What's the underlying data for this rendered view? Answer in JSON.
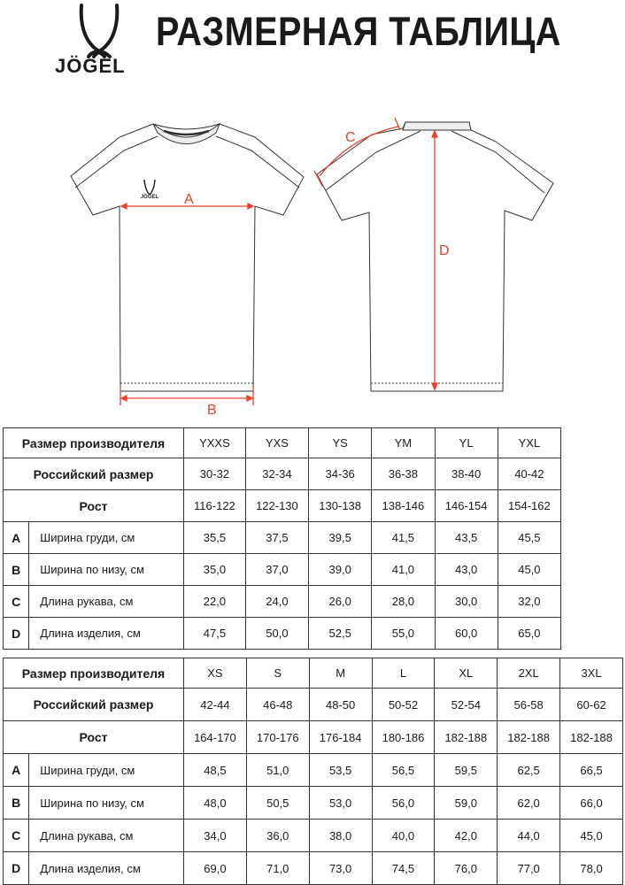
{
  "header": {
    "title": "РАЗМЕРНАЯ ТАБЛИЦА",
    "logo_text": "JÖGEL"
  },
  "diagram": {
    "labels": {
      "a": "A",
      "b": "B",
      "c": "C",
      "d": "D"
    },
    "measure_color": "#e8412c",
    "chest_logo_text": "JÖGEL"
  },
  "tables": [
    {
      "header_label": "Размер производителя",
      "sizes": [
        "YXXS",
        "YXS",
        "YS",
        "YM",
        "YL",
        "YXL"
      ],
      "russian_label": "Российский размер",
      "russian": [
        "30-32",
        "32-34",
        "34-36",
        "36-38",
        "38-40",
        "40-42"
      ],
      "height_label": "Рост",
      "heights": [
        "116-122",
        "122-130",
        "130-138",
        "138-146",
        "146-154",
        "154-162"
      ],
      "rows": [
        {
          "letter": "A",
          "name": "Ширина груди, см",
          "values": [
            "35,5",
            "37,5",
            "39,5",
            "41,5",
            "43,5",
            "45,5"
          ]
        },
        {
          "letter": "B",
          "name": "Ширина по низу, см",
          "values": [
            "35,0",
            "37,0",
            "39,0",
            "41,0",
            "43,0",
            "45,0"
          ]
        },
        {
          "letter": "C",
          "name": "Длина рукава, см",
          "values": [
            "22,0",
            "24,0",
            "26,0",
            "28,0",
            "30,0",
            "32,0"
          ]
        },
        {
          "letter": "D",
          "name": "Длина изделия, см",
          "values": [
            "47,5",
            "50,0",
            "52,5",
            "55,0",
            "60,0",
            "65,0"
          ]
        }
      ]
    },
    {
      "header_label": "Размер производителя",
      "sizes": [
        "XS",
        "S",
        "M",
        "L",
        "XL",
        "2XL",
        "3XL"
      ],
      "russian_label": "Российский размер",
      "russian": [
        "42-44",
        "46-48",
        "48-50",
        "50-52",
        "52-54",
        "56-58",
        "60-62"
      ],
      "height_label": "Рост",
      "heights": [
        "164-170",
        "170-176",
        "176-184",
        "180-186",
        "182-188",
        "182-188",
        "182-188"
      ],
      "rows": [
        {
          "letter": "A",
          "name": "Ширина груди, см",
          "values": [
            "48,5",
            "51,0",
            "53,5",
            "56,5",
            "59,5",
            "62,5",
            "66,5"
          ]
        },
        {
          "letter": "B",
          "name": "Ширина по низу, см",
          "values": [
            "48,0",
            "50,5",
            "53,0",
            "56,0",
            "59,0",
            "62,0",
            "66,0"
          ]
        },
        {
          "letter": "C",
          "name": "Длина рукава, см",
          "values": [
            "34,0",
            "36,0",
            "38,0",
            "40,0",
            "42,0",
            "44,0",
            "45,0"
          ]
        },
        {
          "letter": "D",
          "name": "Длина изделия, см",
          "values": [
            "69,0",
            "71,0",
            "73,0",
            "74,5",
            "76,0",
            "77,0",
            "78,0"
          ]
        }
      ]
    }
  ]
}
